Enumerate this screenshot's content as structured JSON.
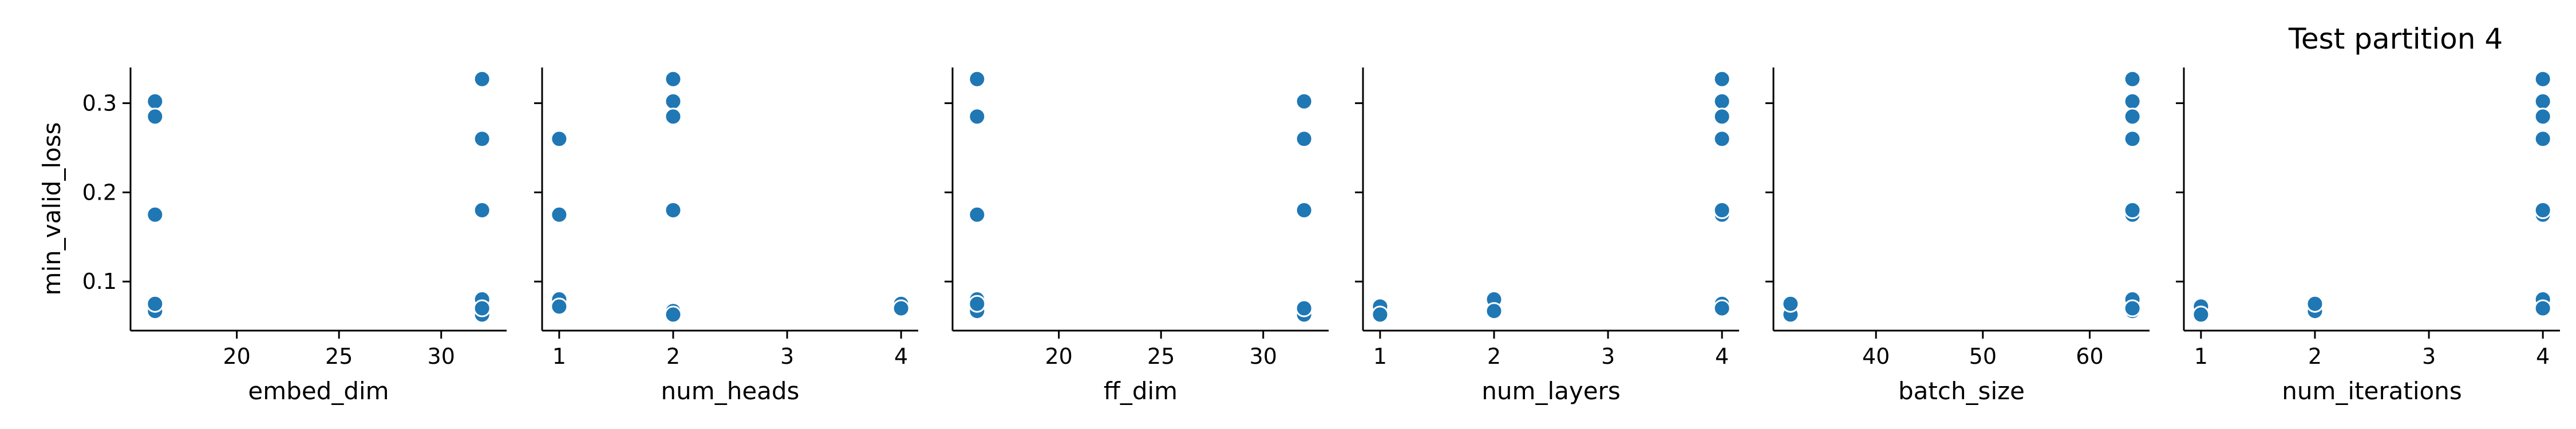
{
  "title": "Test partition 4",
  "chart_data": {
    "type": "scatter",
    "title": "Test partition 4",
    "ylabel": "min_valid_loss",
    "ylim": [
      0.045,
      0.34
    ],
    "yticks": [
      0.1,
      0.2,
      0.3
    ],
    "ytick_labels": [
      "0.1",
      "0.2",
      "0.3"
    ],
    "marker_color": "#1f77b4",
    "marker_edge": "#ffffff",
    "grid": false,
    "y": [
      0.302,
      0.327,
      0.285,
      0.26,
      0.175,
      0.18,
      0.08,
      0.072,
      0.067,
      0.063,
      0.075,
      0.07
    ],
    "panels": [
      {
        "xlabel": "embed_dim",
        "xlim": [
          14.8,
          33.2
        ],
        "xticks": [
          20,
          25,
          30
        ],
        "xtick_labels": [
          "20",
          "25",
          "30"
        ],
        "x": [
          16,
          32,
          16,
          32,
          16,
          32,
          32,
          16,
          16,
          32,
          16,
          32
        ]
      },
      {
        "xlabel": "num_heads",
        "xlim": [
          0.85,
          4.15
        ],
        "xticks": [
          1,
          2,
          3,
          4
        ],
        "xtick_labels": [
          "1",
          "2",
          "3",
          "4"
        ],
        "x": [
          2,
          2,
          2,
          1,
          1,
          2,
          1,
          1,
          2,
          2,
          4,
          4
        ]
      },
      {
        "xlabel": "ff_dim",
        "xlim": [
          14.8,
          33.2
        ],
        "xticks": [
          20,
          25,
          30
        ],
        "xtick_labels": [
          "20",
          "25",
          "30"
        ],
        "x": [
          32,
          16,
          16,
          32,
          16,
          32,
          16,
          32,
          16,
          32,
          16,
          32
        ]
      },
      {
        "xlabel": "num_layers",
        "xlim": [
          0.85,
          4.15
        ],
        "xticks": [
          1,
          2,
          3,
          4
        ],
        "xtick_labels": [
          "1",
          "2",
          "3",
          "4"
        ],
        "x": [
          4,
          4,
          4,
          4,
          4,
          4,
          2,
          1,
          2,
          1,
          4,
          4
        ]
      },
      {
        "xlabel": "batch_size",
        "xlim": [
          30.4,
          65.6
        ],
        "xticks": [
          40,
          50,
          60
        ],
        "xtick_labels": [
          "40",
          "50",
          "60"
        ],
        "x": [
          64,
          64,
          64,
          64,
          64,
          64,
          64,
          32,
          64,
          32,
          32,
          64
        ]
      },
      {
        "xlabel": "num_iterations",
        "xlim": [
          0.85,
          4.15
        ],
        "xticks": [
          1,
          2,
          3,
          4
        ],
        "xtick_labels": [
          "1",
          "2",
          "3",
          "4"
        ],
        "x": [
          4,
          4,
          4,
          4,
          4,
          4,
          4,
          1,
          2,
          1,
          2,
          4
        ]
      }
    ]
  }
}
